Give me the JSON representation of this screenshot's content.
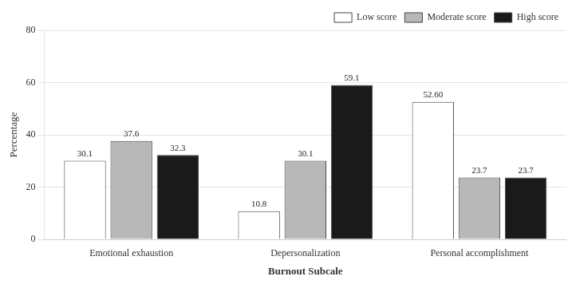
{
  "chart_data": {
    "type": "bar",
    "categories": [
      "Emotional exhaustion",
      "Depersonalization",
      "Personal accomplishment"
    ],
    "series": [
      {
        "name": "Low score",
        "color": "#ffffff",
        "values": [
          30.1,
          10.8,
          52.6
        ],
        "value_labels": [
          "30.1",
          "10.8",
          "52.60"
        ]
      },
      {
        "name": "Moderate score",
        "color": "#b8b8b8",
        "values": [
          37.6,
          30.1,
          23.7
        ],
        "value_labels": [
          "37.6",
          "30.1",
          "23.7"
        ]
      },
      {
        "name": "High score",
        "color": "#1a1a1a",
        "values": [
          32.3,
          59.1,
          23.7
        ],
        "value_labels": [
          "32.3",
          "59.1",
          "23.7"
        ]
      }
    ],
    "xlabel": "Burnout Subcale",
    "ylabel": "Percentage",
    "ylim": [
      0,
      80
    ],
    "yticks": [
      0,
      20,
      40,
      60,
      80
    ],
    "grid": true,
    "legend": "top-right",
    "data_labels": true
  }
}
